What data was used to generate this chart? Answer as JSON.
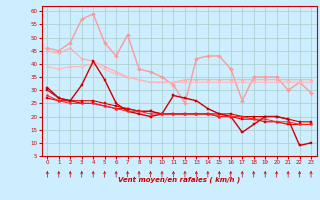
{
  "title": "",
  "xlabel": "Vent moyen/en rafales ( km/h )",
  "ylabel": "",
  "bg_color": "#cceeff",
  "grid_color": "#aacccc",
  "x": [
    0,
    1,
    2,
    3,
    4,
    5,
    6,
    7,
    8,
    9,
    10,
    11,
    12,
    13,
    14,
    15,
    16,
    17,
    18,
    19,
    20,
    21,
    22,
    23
  ],
  "series": [
    {
      "color": "#ff9999",
      "lw": 1.0,
      "marker": "D",
      "ms": 2.0,
      "data": [
        46,
        45,
        48,
        57,
        59,
        48,
        43,
        51,
        38,
        37,
        35,
        32,
        25,
        42,
        43,
        43,
        38,
        26,
        35,
        35,
        35,
        30,
        33,
        29
      ]
    },
    {
      "color": "#ffaaaa",
      "lw": 0.8,
      "marker": "D",
      "ms": 1.5,
      "data": [
        45,
        44,
        46,
        42,
        41,
        39,
        37,
        35,
        34,
        33,
        33,
        33,
        34,
        34,
        34,
        34,
        34,
        34,
        34,
        34,
        34,
        34,
        34,
        34
      ]
    },
    {
      "color": "#ffbbbb",
      "lw": 0.8,
      "marker": "D",
      "ms": 1.5,
      "data": [
        39,
        38,
        39,
        39,
        40,
        38,
        36,
        35,
        34,
        33,
        33,
        33,
        33,
        33,
        33,
        33,
        33,
        33,
        33,
        33,
        33,
        33,
        33,
        33
      ]
    },
    {
      "color": "#cc0000",
      "lw": 1.0,
      "marker": "s",
      "ms": 2.0,
      "data": [
        31,
        27,
        26,
        32,
        41,
        34,
        25,
        22,
        21,
        20,
        21,
        28,
        27,
        26,
        23,
        21,
        20,
        14,
        17,
        20,
        20,
        19,
        9,
        10
      ]
    },
    {
      "color": "#dd0000",
      "lw": 0.8,
      "marker": "s",
      "ms": 1.5,
      "data": [
        27,
        26,
        26,
        26,
        26,
        25,
        24,
        23,
        22,
        22,
        21,
        21,
        21,
        21,
        21,
        20,
        20,
        19,
        19,
        18,
        18,
        17,
        17,
        17
      ]
    },
    {
      "color": "#cc0000",
      "lw": 0.8,
      "marker": "s",
      "ms": 1.5,
      "data": [
        30,
        27,
        26,
        25,
        25,
        24,
        23,
        23,
        22,
        22,
        21,
        21,
        21,
        21,
        21,
        21,
        21,
        20,
        20,
        20,
        20,
        19,
        18,
        18
      ]
    },
    {
      "color": "#ff2222",
      "lw": 0.7,
      "marker": "s",
      "ms": 1.2,
      "data": [
        28,
        26,
        25,
        25,
        25,
        24,
        23,
        22,
        22,
        21,
        21,
        21,
        21,
        21,
        21,
        20,
        20,
        20,
        19,
        19,
        18,
        18,
        17,
        17
      ]
    }
  ],
  "ylim": [
    5,
    62
  ],
  "yticks": [
    5,
    10,
    15,
    20,
    25,
    30,
    35,
    40,
    45,
    50,
    55,
    60
  ],
  "xticks": [
    0,
    1,
    2,
    3,
    4,
    5,
    6,
    7,
    8,
    9,
    10,
    11,
    12,
    13,
    14,
    15,
    16,
    17,
    18,
    19,
    20,
    21,
    22,
    23
  ]
}
